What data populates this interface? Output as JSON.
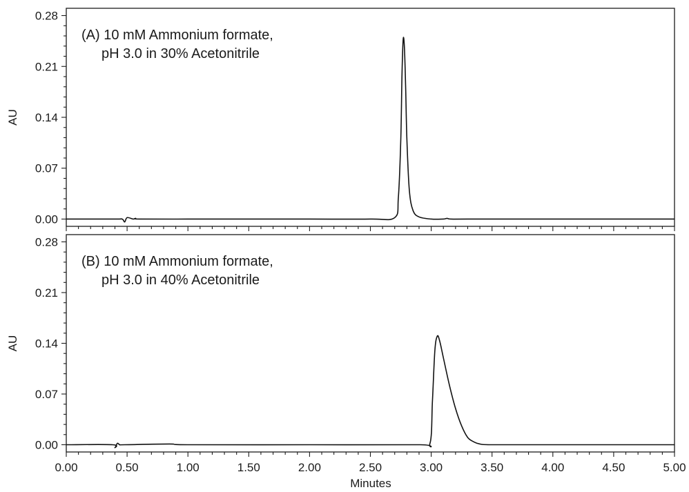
{
  "chart_data": [
    {
      "type": "line",
      "panel": "A",
      "annotation_lines": [
        "(A) 10 mM Ammonium formate,",
        "pH 3.0 in 30% Acetonitrile"
      ],
      "ylabel": "AU",
      "xlabel": "",
      "xlim": [
        0,
        5
      ],
      "ylim": [
        -0.01,
        0.29
      ],
      "yticks": [
        0.0,
        0.07,
        0.14,
        0.21,
        0.28
      ],
      "ytick_labels": [
        "0.00",
        "0.07",
        "0.14",
        "0.21",
        "0.28"
      ],
      "series": [
        {
          "x": [
            0.0,
            0.4,
            0.46,
            0.48,
            0.5,
            0.55,
            0.57,
            0.6,
            1.0,
            1.5,
            2.0,
            2.5,
            2.7,
            2.73,
            2.75,
            2.76,
            2.77,
            2.78,
            2.79,
            2.8,
            2.82,
            2.85,
            2.9,
            3.0,
            3.1,
            3.13,
            3.16,
            3.3,
            4.0,
            5.0
          ],
          "y": [
            0.0,
            0.0,
            0.0,
            -0.004,
            0.002,
            0.0,
            0.001,
            0.0,
            0.0,
            0.0,
            0.0,
            0.0,
            0.002,
            0.03,
            0.11,
            0.2,
            0.248,
            0.235,
            0.18,
            0.11,
            0.04,
            0.012,
            0.003,
            0.0,
            0.0,
            0.001,
            0.0,
            0.0,
            0.0,
            0.0
          ]
        }
      ]
    },
    {
      "type": "line",
      "panel": "B",
      "annotation_lines": [
        "(B) 10 mM Ammonium formate,",
        "pH 3.0 in 40% Acetonitrile"
      ],
      "ylabel": "AU",
      "xlabel": "Minutes",
      "xlim": [
        0,
        5
      ],
      "ylim": [
        -0.01,
        0.29
      ],
      "xticks": [
        0.0,
        0.5,
        1.0,
        1.5,
        2.0,
        2.5,
        3.0,
        3.5,
        4.0,
        4.5,
        5.0
      ],
      "xtick_labels": [
        "0.00",
        "0.50",
        "1.00",
        "1.50",
        "2.00",
        "2.50",
        "3.00",
        "3.50",
        "4.00",
        "4.50",
        "5.00"
      ],
      "yticks": [
        0.0,
        0.07,
        0.14,
        0.21,
        0.28
      ],
      "ytick_labels": [
        "0.00",
        "0.07",
        "0.14",
        "0.21",
        "0.28"
      ],
      "series": [
        {
          "x": [
            0.0,
            0.38,
            0.4,
            0.42,
            0.44,
            0.48,
            0.85,
            1.0,
            2.0,
            2.9,
            2.99,
            3.01,
            3.03,
            3.05,
            3.07,
            3.1,
            3.15,
            3.2,
            3.25,
            3.3,
            3.35,
            3.4,
            3.5,
            4.0,
            5.0
          ],
          "y": [
            0.0,
            0.0,
            -0.004,
            0.002,
            0.0,
            0.0,
            0.001,
            0.0,
            0.0,
            0.0,
            0.002,
            0.06,
            0.13,
            0.15,
            0.143,
            0.12,
            0.082,
            0.05,
            0.026,
            0.01,
            0.004,
            0.001,
            0.0,
            0.0,
            0.0
          ]
        }
      ]
    }
  ]
}
